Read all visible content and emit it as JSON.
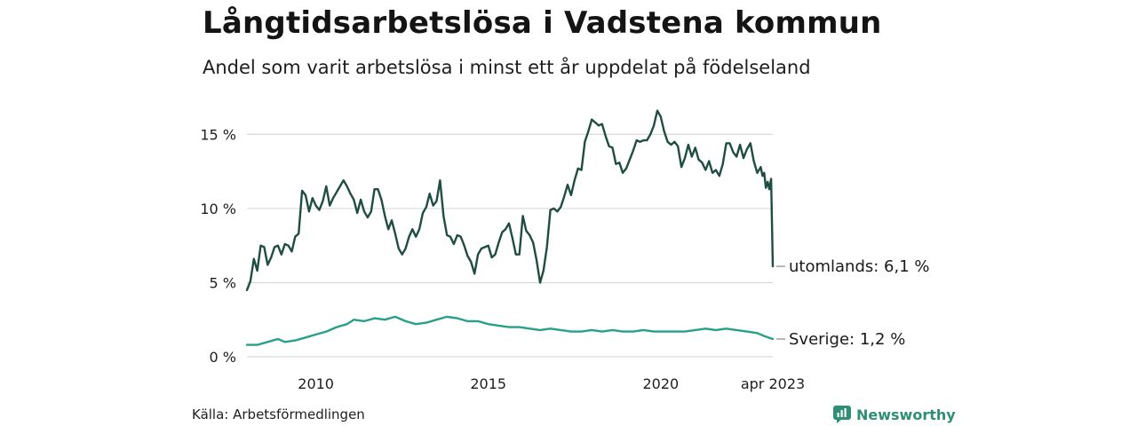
{
  "title": "Långtidsarbetslösa i Vadstena kommun",
  "subtitle": "Andel som varit arbetslösa i minst ett år uppdelat på födelseland",
  "source": "Källa: Arbetsförmedlingen",
  "brand": {
    "name": "Newsworthy",
    "icon": "newsworthy-logo-icon",
    "color": "#2f8f74"
  },
  "chart_data": {
    "type": "line",
    "title": "Långtidsarbetslösa i Vadstena kommun",
    "xlabel": "",
    "ylabel": "",
    "xlim": [
      2008.0,
      2023.25
    ],
    "ylim": [
      0,
      17
    ],
    "grid": "horizontal",
    "y_ticks": [
      0,
      5,
      10,
      15
    ],
    "y_tick_labels": [
      "0 %",
      "5 %",
      "10 %",
      "15 %"
    ],
    "x_ticks": [
      2010,
      2015,
      2020,
      2023.25
    ],
    "x_tick_labels": [
      "2010",
      "2015",
      "2020",
      "apr 2023"
    ],
    "series": [
      {
        "name": "utomlands",
        "label": "utomlands: 6,1 %",
        "color": "#1f4d42",
        "points": [
          [
            2008.0,
            4.5
          ],
          [
            2008.1,
            5.1
          ],
          [
            2008.2,
            6.6
          ],
          [
            2008.3,
            5.8
          ],
          [
            2008.4,
            7.5
          ],
          [
            2008.5,
            7.4
          ],
          [
            2008.6,
            6.2
          ],
          [
            2008.7,
            6.7
          ],
          [
            2008.8,
            7.4
          ],
          [
            2008.9,
            7.5
          ],
          [
            2009.0,
            6.9
          ],
          [
            2009.1,
            7.6
          ],
          [
            2009.2,
            7.5
          ],
          [
            2009.3,
            7.1
          ],
          [
            2009.4,
            8.1
          ],
          [
            2009.5,
            8.3
          ],
          [
            2009.6,
            11.2
          ],
          [
            2009.7,
            10.9
          ],
          [
            2009.8,
            9.8
          ],
          [
            2009.9,
            10.7
          ],
          [
            2010.0,
            10.2
          ],
          [
            2010.1,
            9.9
          ],
          [
            2010.2,
            10.5
          ],
          [
            2010.3,
            11.5
          ],
          [
            2010.4,
            10.2
          ],
          [
            2010.5,
            10.7
          ],
          [
            2010.6,
            11.1
          ],
          [
            2010.7,
            11.5
          ],
          [
            2010.8,
            11.9
          ],
          [
            2010.9,
            11.5
          ],
          [
            2011.0,
            11.0
          ],
          [
            2011.1,
            10.6
          ],
          [
            2011.2,
            9.7
          ],
          [
            2011.3,
            10.6
          ],
          [
            2011.4,
            9.8
          ],
          [
            2011.5,
            9.4
          ],
          [
            2011.6,
            9.8
          ],
          [
            2011.7,
            11.3
          ],
          [
            2011.8,
            11.3
          ],
          [
            2011.9,
            10.6
          ],
          [
            2012.0,
            9.5
          ],
          [
            2012.1,
            8.6
          ],
          [
            2012.2,
            9.2
          ],
          [
            2012.3,
            8.3
          ],
          [
            2012.4,
            7.3
          ],
          [
            2012.5,
            6.9
          ],
          [
            2012.6,
            7.3
          ],
          [
            2012.7,
            8.1
          ],
          [
            2012.8,
            8.6
          ],
          [
            2012.9,
            8.1
          ],
          [
            2013.0,
            8.6
          ],
          [
            2013.1,
            9.7
          ],
          [
            2013.2,
            10.1
          ],
          [
            2013.3,
            11.0
          ],
          [
            2013.4,
            10.2
          ],
          [
            2013.5,
            10.5
          ],
          [
            2013.6,
            11.9
          ],
          [
            2013.7,
            9.5
          ],
          [
            2013.8,
            8.2
          ],
          [
            2013.9,
            8.1
          ],
          [
            2014.0,
            7.6
          ],
          [
            2014.1,
            8.2
          ],
          [
            2014.2,
            8.1
          ],
          [
            2014.3,
            7.5
          ],
          [
            2014.4,
            6.8
          ],
          [
            2014.5,
            6.4
          ],
          [
            2014.6,
            5.6
          ],
          [
            2014.7,
            6.9
          ],
          [
            2014.8,
            7.3
          ],
          [
            2014.9,
            7.4
          ],
          [
            2015.0,
            7.5
          ],
          [
            2015.1,
            6.7
          ],
          [
            2015.2,
            6.9
          ],
          [
            2015.3,
            7.7
          ],
          [
            2015.4,
            8.4
          ],
          [
            2015.5,
            8.6
          ],
          [
            2015.6,
            9.0
          ],
          [
            2015.7,
            8.0
          ],
          [
            2015.8,
            6.9
          ],
          [
            2015.9,
            6.9
          ],
          [
            2016.0,
            9.5
          ],
          [
            2016.1,
            8.5
          ],
          [
            2016.2,
            8.2
          ],
          [
            2016.3,
            7.7
          ],
          [
            2016.4,
            6.5
          ],
          [
            2016.5,
            5.0
          ],
          [
            2016.6,
            5.8
          ],
          [
            2016.7,
            7.4
          ],
          [
            2016.8,
            9.9
          ],
          [
            2016.9,
            10.0
          ],
          [
            2017.0,
            9.8
          ],
          [
            2017.1,
            10.1
          ],
          [
            2017.2,
            10.8
          ],
          [
            2017.3,
            11.6
          ],
          [
            2017.4,
            10.9
          ],
          [
            2017.5,
            11.9
          ],
          [
            2017.6,
            12.7
          ],
          [
            2017.7,
            12.6
          ],
          [
            2017.8,
            14.5
          ],
          [
            2017.9,
            15.2
          ],
          [
            2018.0,
            16.0
          ],
          [
            2018.1,
            15.8
          ],
          [
            2018.2,
            15.6
          ],
          [
            2018.3,
            15.7
          ],
          [
            2018.4,
            14.9
          ],
          [
            2018.5,
            14.2
          ],
          [
            2018.6,
            14.1
          ],
          [
            2018.7,
            13.0
          ],
          [
            2018.8,
            13.1
          ],
          [
            2018.9,
            12.4
          ],
          [
            2019.0,
            12.7
          ],
          [
            2019.1,
            13.3
          ],
          [
            2019.2,
            13.9
          ],
          [
            2019.3,
            14.6
          ],
          [
            2019.4,
            14.5
          ],
          [
            2019.5,
            14.6
          ],
          [
            2019.6,
            14.6
          ],
          [
            2019.7,
            15.0
          ],
          [
            2019.8,
            15.6
          ],
          [
            2019.9,
            16.6
          ],
          [
            2020.0,
            16.2
          ],
          [
            2020.1,
            15.2
          ],
          [
            2020.2,
            14.5
          ],
          [
            2020.3,
            14.3
          ],
          [
            2020.4,
            14.5
          ],
          [
            2020.5,
            14.2
          ],
          [
            2020.6,
            12.8
          ],
          [
            2020.7,
            13.4
          ],
          [
            2020.8,
            14.3
          ],
          [
            2020.9,
            13.5
          ],
          [
            2021.0,
            14.1
          ],
          [
            2021.1,
            13.3
          ],
          [
            2021.2,
            13.1
          ],
          [
            2021.3,
            12.6
          ],
          [
            2021.4,
            13.2
          ],
          [
            2021.5,
            12.4
          ],
          [
            2021.6,
            12.6
          ],
          [
            2021.7,
            12.2
          ],
          [
            2021.8,
            13.0
          ],
          [
            2021.9,
            14.4
          ],
          [
            2022.0,
            14.4
          ],
          [
            2022.1,
            13.8
          ],
          [
            2022.2,
            13.5
          ],
          [
            2022.3,
            14.3
          ],
          [
            2022.4,
            13.4
          ],
          [
            2022.5,
            14.0
          ],
          [
            2022.6,
            14.4
          ],
          [
            2022.7,
            13.2
          ],
          [
            2022.8,
            12.4
          ],
          [
            2022.9,
            12.8
          ],
          [
            2022.95,
            12.2
          ],
          [
            2023.0,
            12.4
          ],
          [
            2023.05,
            11.4
          ],
          [
            2023.1,
            11.8
          ],
          [
            2023.15,
            11.3
          ],
          [
            2023.2,
            12.0
          ],
          [
            2023.25,
            6.1
          ]
        ]
      },
      {
        "name": "Sverige",
        "label": "Sverige: 1,2 %",
        "color": "#26a08a",
        "points": [
          [
            2008.0,
            0.8
          ],
          [
            2008.3,
            0.8
          ],
          [
            2008.6,
            1.0
          ],
          [
            2008.9,
            1.2
          ],
          [
            2009.1,
            1.0
          ],
          [
            2009.4,
            1.1
          ],
          [
            2009.7,
            1.3
          ],
          [
            2010.0,
            1.5
          ],
          [
            2010.3,
            1.7
          ],
          [
            2010.6,
            2.0
          ],
          [
            2010.9,
            2.2
          ],
          [
            2011.1,
            2.5
          ],
          [
            2011.4,
            2.4
          ],
          [
            2011.7,
            2.6
          ],
          [
            2012.0,
            2.5
          ],
          [
            2012.3,
            2.7
          ],
          [
            2012.6,
            2.4
          ],
          [
            2012.9,
            2.2
          ],
          [
            2013.2,
            2.3
          ],
          [
            2013.5,
            2.5
          ],
          [
            2013.8,
            2.7
          ],
          [
            2014.1,
            2.6
          ],
          [
            2014.4,
            2.4
          ],
          [
            2014.7,
            2.4
          ],
          [
            2015.0,
            2.2
          ],
          [
            2015.3,
            2.1
          ],
          [
            2015.6,
            2.0
          ],
          [
            2015.9,
            2.0
          ],
          [
            2016.2,
            1.9
          ],
          [
            2016.5,
            1.8
          ],
          [
            2016.8,
            1.9
          ],
          [
            2017.1,
            1.8
          ],
          [
            2017.4,
            1.7
          ],
          [
            2017.7,
            1.7
          ],
          [
            2018.0,
            1.8
          ],
          [
            2018.3,
            1.7
          ],
          [
            2018.6,
            1.8
          ],
          [
            2018.9,
            1.7
          ],
          [
            2019.2,
            1.7
          ],
          [
            2019.5,
            1.8
          ],
          [
            2019.8,
            1.7
          ],
          [
            2020.1,
            1.7
          ],
          [
            2020.4,
            1.7
          ],
          [
            2020.7,
            1.7
          ],
          [
            2021.0,
            1.8
          ],
          [
            2021.3,
            1.9
          ],
          [
            2021.6,
            1.8
          ],
          [
            2021.9,
            1.9
          ],
          [
            2022.2,
            1.8
          ],
          [
            2022.5,
            1.7
          ],
          [
            2022.8,
            1.6
          ],
          [
            2023.0,
            1.4
          ],
          [
            2023.25,
            1.2
          ]
        ]
      }
    ]
  }
}
